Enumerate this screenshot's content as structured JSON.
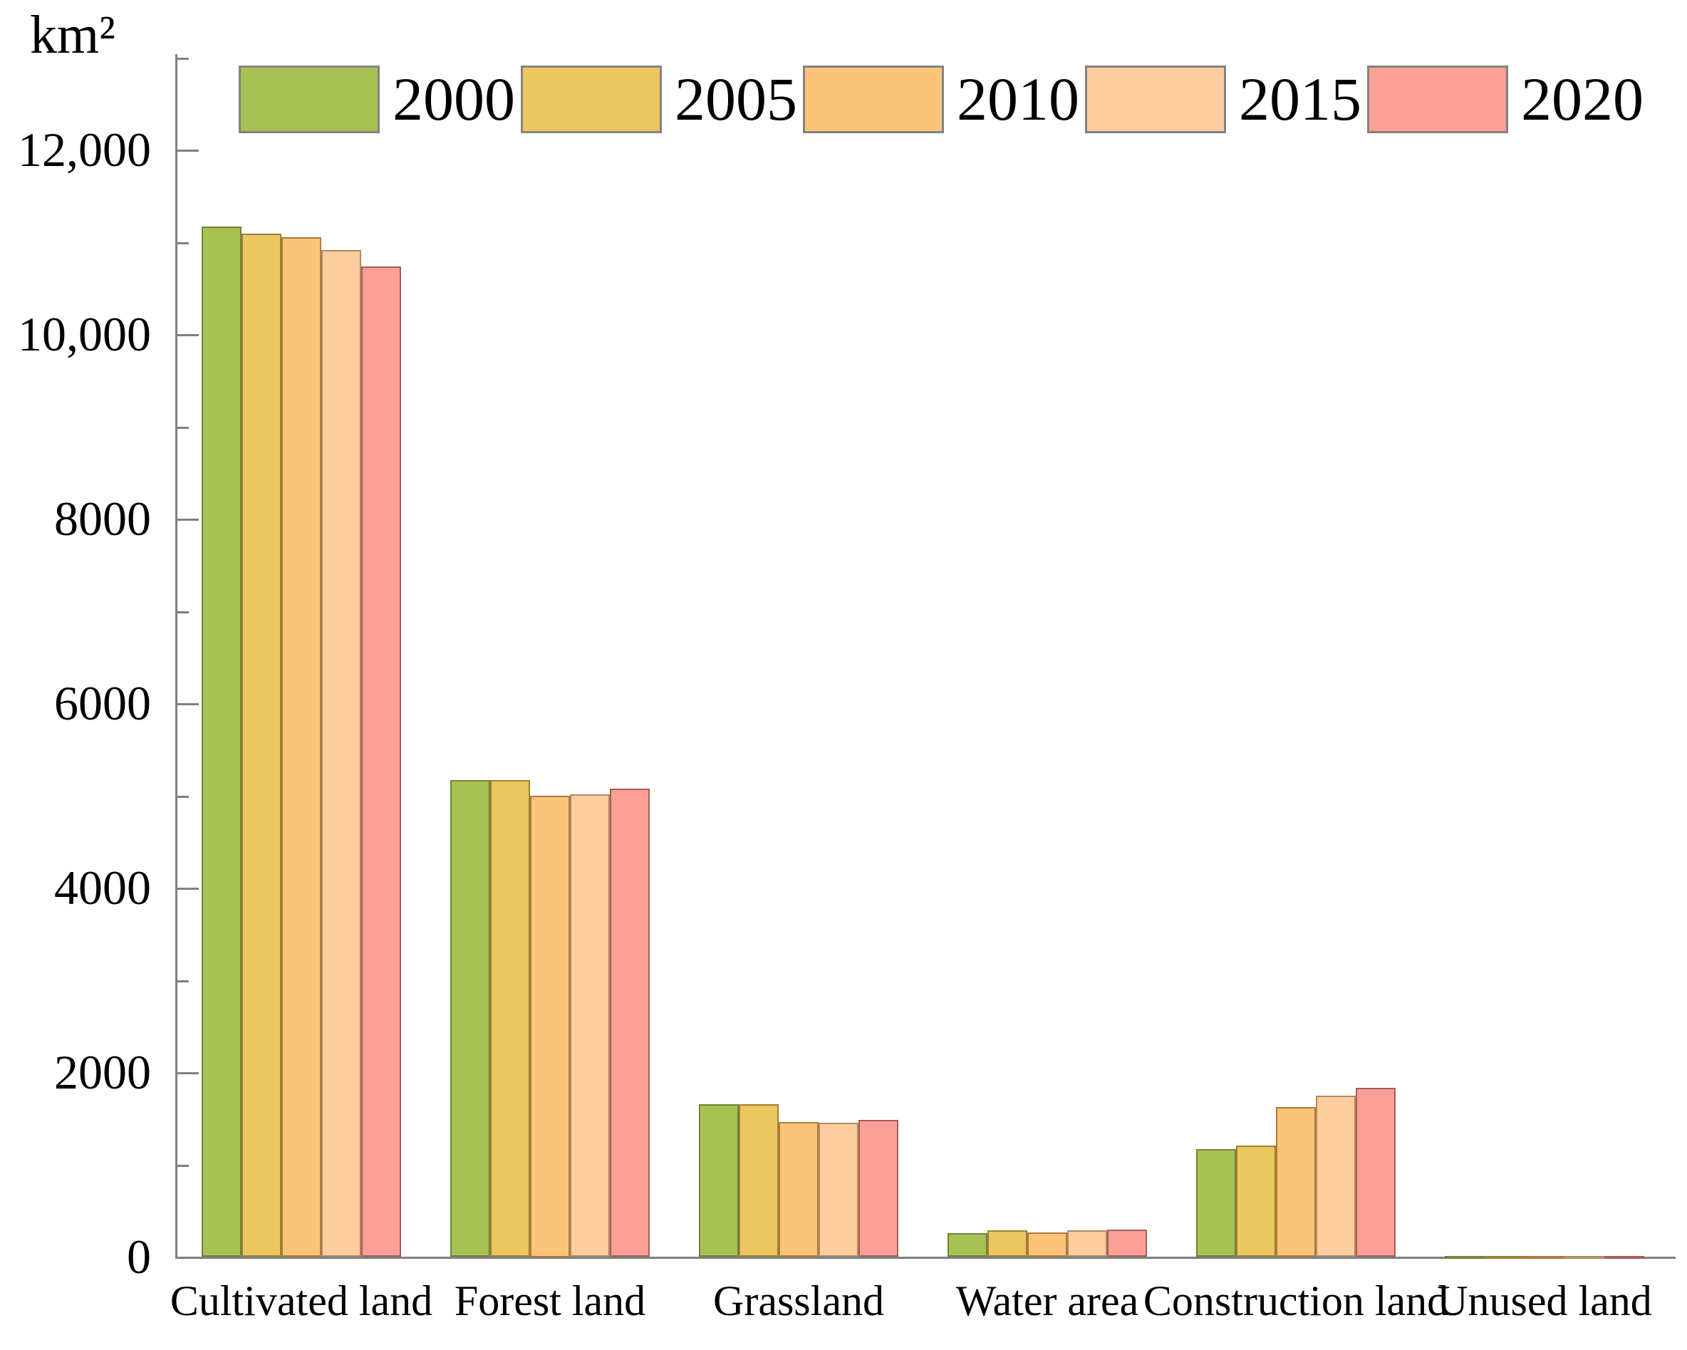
{
  "unit_label": "km²",
  "colors": {
    "background": "#ffffff",
    "axis": "#7f7f7f",
    "text": "#000000"
  },
  "chart_data": {
    "type": "bar",
    "title": "",
    "ylabel": "km²",
    "xlabel": "",
    "grid": false,
    "legend_position": "top",
    "ylim": [
      0,
      13000
    ],
    "minor_tick_step": 1000,
    "major_tick_step": 2000,
    "categories": [
      "Cultivated land",
      "Forest land",
      "Grassland",
      "Water area",
      "Construction land",
      "Unused land"
    ],
    "yticks": [
      {
        "value": 0,
        "label": "0"
      },
      {
        "value": 2000,
        "label": "2000"
      },
      {
        "value": 4000,
        "label": "4000"
      },
      {
        "value": 6000,
        "label": "6000"
      },
      {
        "value": 8000,
        "label": "8000"
      },
      {
        "value": 10000,
        "label": "10,000"
      },
      {
        "value": 12000,
        "label": "12,000"
      }
    ],
    "series": [
      {
        "name": "2000",
        "color": "#a7c155",
        "border": "#6f8336",
        "values": [
          11165,
          5165,
          1650,
          255,
          1165,
          6
        ]
      },
      {
        "name": "2005",
        "color": "#ecc65f",
        "border": "#9f7f35",
        "values": [
          11090,
          5165,
          1650,
          285,
          1205,
          6
        ]
      },
      {
        "name": "2010",
        "color": "#fcc479",
        "border": "#ab7b3c",
        "values": [
          11050,
          5000,
          1460,
          265,
          1620,
          6
        ]
      },
      {
        "name": "2015",
        "color": "#fecd9f",
        "border": "#b08a60",
        "values": [
          10910,
          5010,
          1455,
          285,
          1745,
          6
        ]
      },
      {
        "name": "2020",
        "color": "#fb9f97",
        "border": "#a45f58",
        "values": [
          10730,
          5075,
          1480,
          295,
          1830,
          6
        ]
      }
    ]
  }
}
